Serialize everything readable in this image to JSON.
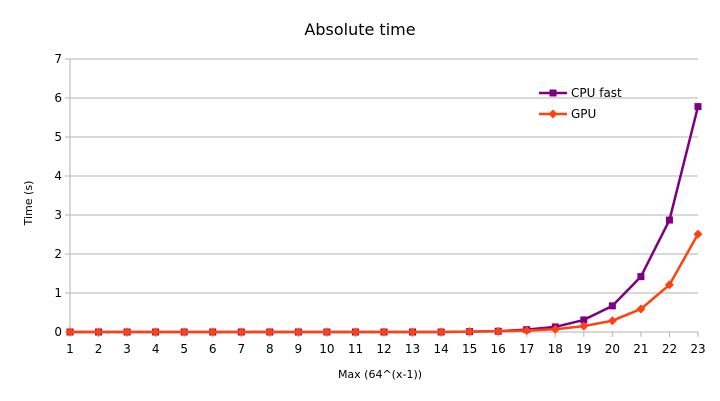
{
  "chart_data": {
    "type": "line",
    "title": "Absolute time",
    "xlabel": "Max (64^(x-1))",
    "ylabel": "Time (s)",
    "x": [
      1,
      2,
      3,
      4,
      5,
      6,
      7,
      8,
      9,
      10,
      11,
      12,
      13,
      14,
      15,
      16,
      17,
      18,
      19,
      20,
      21,
      22,
      23
    ],
    "xlim": [
      1,
      23
    ],
    "ylim": [
      0,
      7
    ],
    "yticks": [
      0,
      1,
      2,
      3,
      4,
      5,
      6,
      7
    ],
    "grid": "horizontal",
    "legend_position": "top-right",
    "series": [
      {
        "name": "CPU fast",
        "color": "#7e0081",
        "marker": "square",
        "values": [
          0,
          0,
          0,
          0,
          0,
          0,
          0,
          0,
          0,
          0,
          0,
          0,
          0,
          0,
          0.01,
          0.02,
          0.06,
          0.13,
          0.31,
          0.67,
          1.42,
          2.87,
          5.78
        ]
      },
      {
        "name": "GPU",
        "color": "#ff420e",
        "marker": "diamond",
        "values": [
          0,
          0,
          0,
          0,
          0,
          0,
          0,
          0,
          0,
          0,
          0,
          0,
          0,
          0,
          0.01,
          0.02,
          0.04,
          0.07,
          0.15,
          0.29,
          0.59,
          1.21,
          2.51
        ]
      }
    ]
  }
}
